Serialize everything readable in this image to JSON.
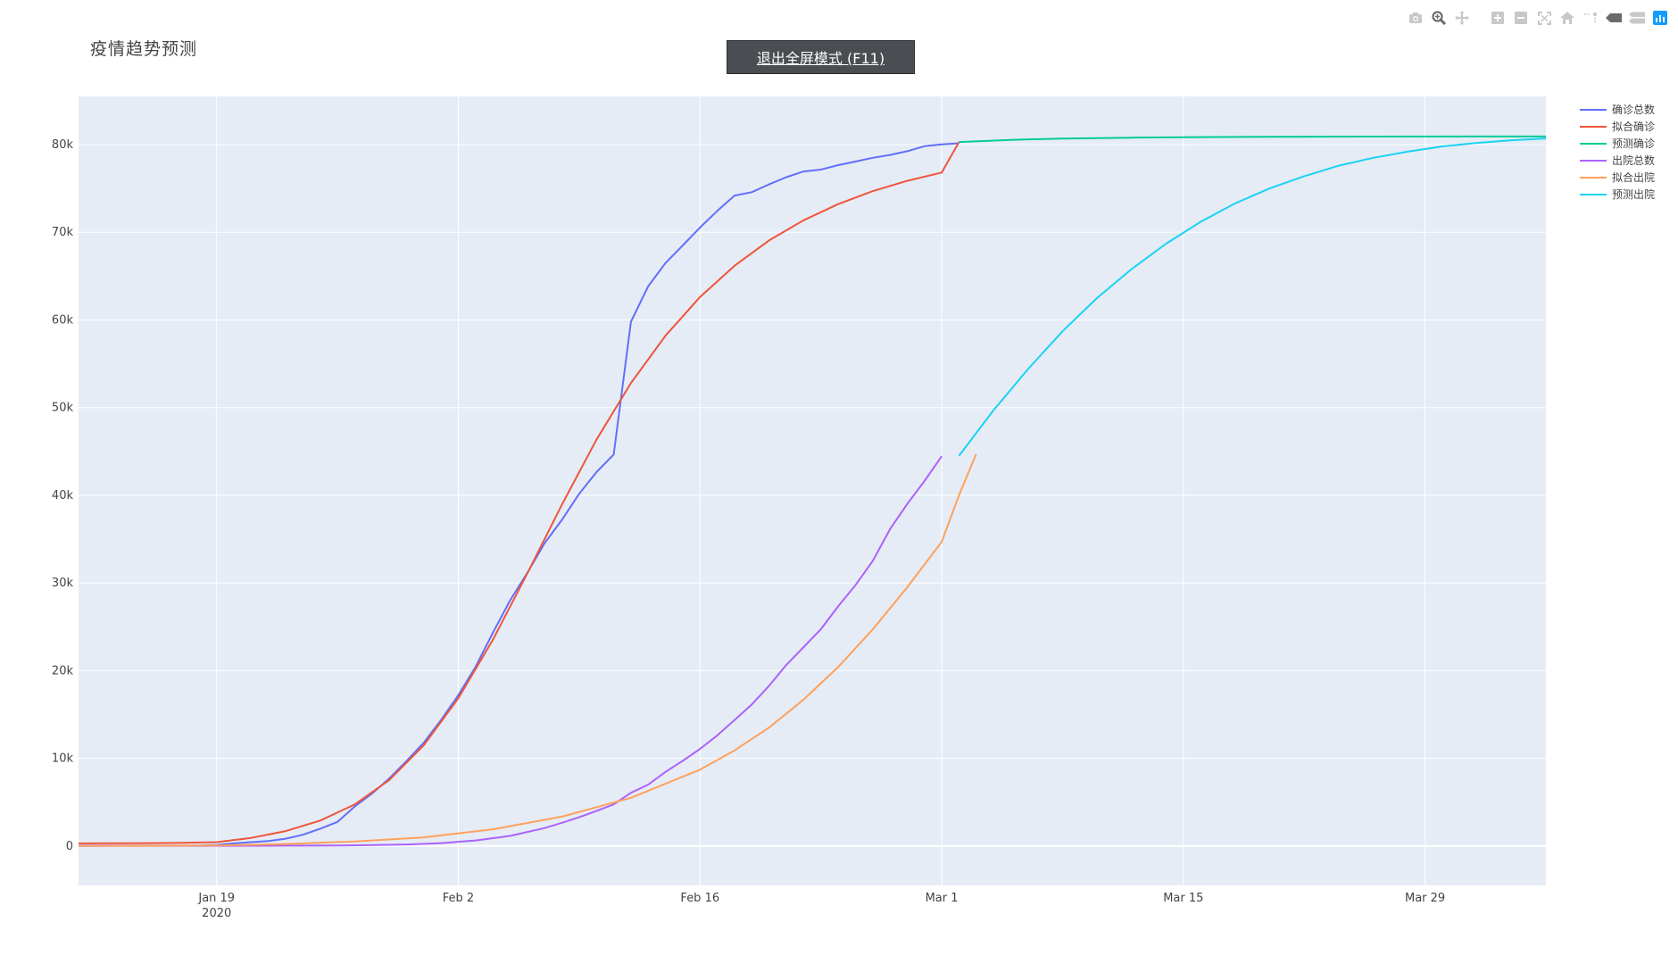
{
  "page": {
    "title": "疫情趋势预测"
  },
  "fullscreen_button": {
    "label": "退出全屏模式 (F11)"
  },
  "modebar": [
    {
      "name": "camera-icon"
    },
    {
      "name": "zoom-icon"
    },
    {
      "name": "pan-icon"
    },
    {
      "name": "zoom-in-icon"
    },
    {
      "name": "zoom-out-icon"
    },
    {
      "name": "autoscale-icon"
    },
    {
      "name": "reset-axes-icon"
    },
    {
      "name": "spike-lines-icon"
    },
    {
      "name": "hover-closest-icon"
    },
    {
      "name": "hover-compare-icon"
    },
    {
      "name": "plotly-logo-icon"
    }
  ],
  "chart_data": {
    "type": "line",
    "title": "疫情趋势预测",
    "xlabel": "",
    "ylabel": "",
    "x_range": [
      "2020-01-11",
      "2020-04-05"
    ],
    "y_range": [
      -4500,
      85500
    ],
    "x_ticks": [
      {
        "date": "2020-01-19",
        "label": "Jan 19",
        "sublabel": "2020"
      },
      {
        "date": "2020-02-02",
        "label": "Feb 2",
        "sublabel": ""
      },
      {
        "date": "2020-02-16",
        "label": "Feb 16",
        "sublabel": ""
      },
      {
        "date": "2020-03-01",
        "label": "Mar 1",
        "sublabel": ""
      },
      {
        "date": "2020-03-15",
        "label": "Mar 15",
        "sublabel": ""
      },
      {
        "date": "2020-03-29",
        "label": "Mar 29",
        "sublabel": ""
      }
    ],
    "y_ticks": [
      {
        "value": 0,
        "label": "0"
      },
      {
        "value": 10000,
        "label": "10k"
      },
      {
        "value": 20000,
        "label": "20k"
      },
      {
        "value": 30000,
        "label": "30k"
      },
      {
        "value": 40000,
        "label": "40k"
      },
      {
        "value": 50000,
        "label": "50k"
      },
      {
        "value": 60000,
        "label": "60k"
      },
      {
        "value": 70000,
        "label": "70k"
      },
      {
        "value": 80000,
        "label": "80k"
      }
    ],
    "grid": true,
    "legend_position": "top-right",
    "series": [
      {
        "name": "确诊总数",
        "color": "#636efa",
        "points": [
          [
            "2020-01-11",
            41
          ],
          [
            "2020-01-16",
            45
          ],
          [
            "2020-01-18",
            62
          ],
          [
            "2020-01-19",
            121
          ],
          [
            "2020-01-20",
            291
          ],
          [
            "2020-01-21",
            440
          ],
          [
            "2020-01-22",
            571
          ],
          [
            "2020-01-23",
            830
          ],
          [
            "2020-01-24",
            1287
          ],
          [
            "2020-01-25",
            1975
          ],
          [
            "2020-01-26",
            2744
          ],
          [
            "2020-01-27",
            4515
          ],
          [
            "2020-01-28",
            5974
          ],
          [
            "2020-01-29",
            7711
          ],
          [
            "2020-01-30",
            9692
          ],
          [
            "2020-01-31",
            11791
          ],
          [
            "2020-02-01",
            14380
          ],
          [
            "2020-02-02",
            17205
          ],
          [
            "2020-02-03",
            20438
          ],
          [
            "2020-02-04",
            24324
          ],
          [
            "2020-02-05",
            28018
          ],
          [
            "2020-02-06",
            31161
          ],
          [
            "2020-02-07",
            34546
          ],
          [
            "2020-02-08",
            37198
          ],
          [
            "2020-02-09",
            40171
          ],
          [
            "2020-02-10",
            42638
          ],
          [
            "2020-02-11",
            44653
          ],
          [
            "2020-02-12",
            59804
          ],
          [
            "2020-02-13",
            63851
          ],
          [
            "2020-02-14",
            66492
          ],
          [
            "2020-02-15",
            68500
          ],
          [
            "2020-02-16",
            70548
          ],
          [
            "2020-02-17",
            72436
          ],
          [
            "2020-02-18",
            74185
          ],
          [
            "2020-02-19",
            74576
          ],
          [
            "2020-02-20",
            75465
          ],
          [
            "2020-02-21",
            76288
          ],
          [
            "2020-02-22",
            76936
          ],
          [
            "2020-02-23",
            77150
          ],
          [
            "2020-02-24",
            77658
          ],
          [
            "2020-02-25",
            78064
          ],
          [
            "2020-02-26",
            78497
          ],
          [
            "2020-02-27",
            78824
          ],
          [
            "2020-02-28",
            79251
          ],
          [
            "2020-02-29",
            79824
          ],
          [
            "2020-03-01",
            80026
          ],
          [
            "2020-03-02",
            80151
          ]
        ]
      },
      {
        "name": "拟合确诊",
        "color": "#ef553b",
        "points": [
          [
            "2020-01-11",
            299
          ],
          [
            "2020-01-13",
            305
          ],
          [
            "2020-01-15",
            321
          ],
          [
            "2020-01-17",
            356
          ],
          [
            "2020-01-19",
            440
          ],
          [
            "2020-01-21",
            924
          ],
          [
            "2020-01-23",
            1700
          ],
          [
            "2020-01-25",
            2900
          ],
          [
            "2020-01-27",
            4743
          ],
          [
            "2020-01-29",
            7523
          ],
          [
            "2020-01-31",
            11498
          ],
          [
            "2020-02-02",
            16853
          ],
          [
            "2020-02-04",
            23522
          ],
          [
            "2020-02-06",
            31114
          ],
          [
            "2020-02-08",
            38946
          ],
          [
            "2020-02-10",
            46332
          ],
          [
            "2020-02-12",
            52808
          ],
          [
            "2020-02-14",
            58209
          ],
          [
            "2020-02-16",
            62623
          ],
          [
            "2020-02-18",
            66191
          ],
          [
            "2020-02-20",
            69063
          ],
          [
            "2020-02-22",
            71370
          ],
          [
            "2020-02-24",
            73214
          ],
          [
            "2020-02-26",
            74691
          ],
          [
            "2020-02-28",
            75870
          ],
          [
            "2020-03-01",
            76820
          ],
          [
            "2020-03-02",
            80274
          ]
        ]
      },
      {
        "name": "预测确诊",
        "color": "#00cc96",
        "points": [
          [
            "2020-03-02",
            80300
          ],
          [
            "2020-03-05",
            80539
          ],
          [
            "2020-03-08",
            80690
          ],
          [
            "2020-03-12",
            80800
          ],
          [
            "2020-03-16",
            80860
          ],
          [
            "2020-03-20",
            80890
          ],
          [
            "2020-03-26",
            80915
          ],
          [
            "2020-04-01",
            80925
          ],
          [
            "2020-04-05",
            80930
          ]
        ]
      },
      {
        "name": "出院总数",
        "color": "#ab63fa",
        "points": [
          [
            "2020-01-11",
            12
          ],
          [
            "2020-01-18",
            17
          ],
          [
            "2020-01-20",
            25
          ],
          [
            "2020-01-22",
            28
          ],
          [
            "2020-01-24",
            38
          ],
          [
            "2020-01-26",
            51
          ],
          [
            "2020-01-28",
            103
          ],
          [
            "2020-01-30",
            171
          ],
          [
            "2020-02-01",
            328
          ],
          [
            "2020-02-03",
            632
          ],
          [
            "2020-02-05",
            1153
          ],
          [
            "2020-02-07",
            2050
          ],
          [
            "2020-02-08",
            2649
          ],
          [
            "2020-02-09",
            3281
          ],
          [
            "2020-02-10",
            3996
          ],
          [
            "2020-02-11",
            4740
          ],
          [
            "2020-02-12",
            6067
          ],
          [
            "2020-02-13",
            7000
          ],
          [
            "2020-02-14",
            8452
          ],
          [
            "2020-02-15",
            9715
          ],
          [
            "2020-02-16",
            11078
          ],
          [
            "2020-02-17",
            12613
          ],
          [
            "2020-02-18",
            14375
          ],
          [
            "2020-02-19",
            16152
          ],
          [
            "2020-02-20",
            18264
          ],
          [
            "2020-02-21",
            20659
          ],
          [
            "2020-02-22",
            22687
          ],
          [
            "2020-02-23",
            24734
          ],
          [
            "2020-02-24",
            27323
          ],
          [
            "2020-02-25",
            29745
          ],
          [
            "2020-02-26",
            32495
          ],
          [
            "2020-02-27",
            36117
          ],
          [
            "2020-02-28",
            39002
          ],
          [
            "2020-02-29",
            41625
          ],
          [
            "2020-03-01",
            44462
          ]
        ]
      },
      {
        "name": "拟合出院",
        "color": "#ffa15a",
        "points": [
          [
            "2020-01-11",
            6
          ],
          [
            "2020-01-19",
            55
          ],
          [
            "2020-01-23",
            220
          ],
          [
            "2020-01-27",
            520
          ],
          [
            "2020-01-31",
            990
          ],
          [
            "2020-02-04",
            1900
          ],
          [
            "2020-02-08",
            3350
          ],
          [
            "2020-02-12",
            5500
          ],
          [
            "2020-02-16",
            8700
          ],
          [
            "2020-02-18",
            10900
          ],
          [
            "2020-02-20",
            13500
          ],
          [
            "2020-02-22",
            16700
          ],
          [
            "2020-02-24",
            20400
          ],
          [
            "2020-02-26",
            24700
          ],
          [
            "2020-02-28",
            29500
          ],
          [
            "2020-03-01",
            34700
          ],
          [
            "2020-03-02",
            40000
          ],
          [
            "2020-03-03",
            44700
          ]
        ]
      },
      {
        "name": "预测出院",
        "color": "#19d3f3",
        "points": [
          [
            "2020-03-02",
            44500
          ],
          [
            "2020-03-04",
            49700
          ],
          [
            "2020-03-06",
            54400
          ],
          [
            "2020-03-08",
            58700
          ],
          [
            "2020-03-10",
            62500
          ],
          [
            "2020-03-12",
            65800
          ],
          [
            "2020-03-14",
            68700
          ],
          [
            "2020-03-16",
            71200
          ],
          [
            "2020-03-18",
            73300
          ],
          [
            "2020-03-20",
            75000
          ],
          [
            "2020-03-22",
            76400
          ],
          [
            "2020-03-24",
            77600
          ],
          [
            "2020-03-26",
            78500
          ],
          [
            "2020-03-28",
            79200
          ],
          [
            "2020-03-30",
            79800
          ],
          [
            "2020-04-01",
            80200
          ],
          [
            "2020-04-03",
            80500
          ],
          [
            "2020-04-05",
            80700
          ]
        ]
      }
    ]
  }
}
